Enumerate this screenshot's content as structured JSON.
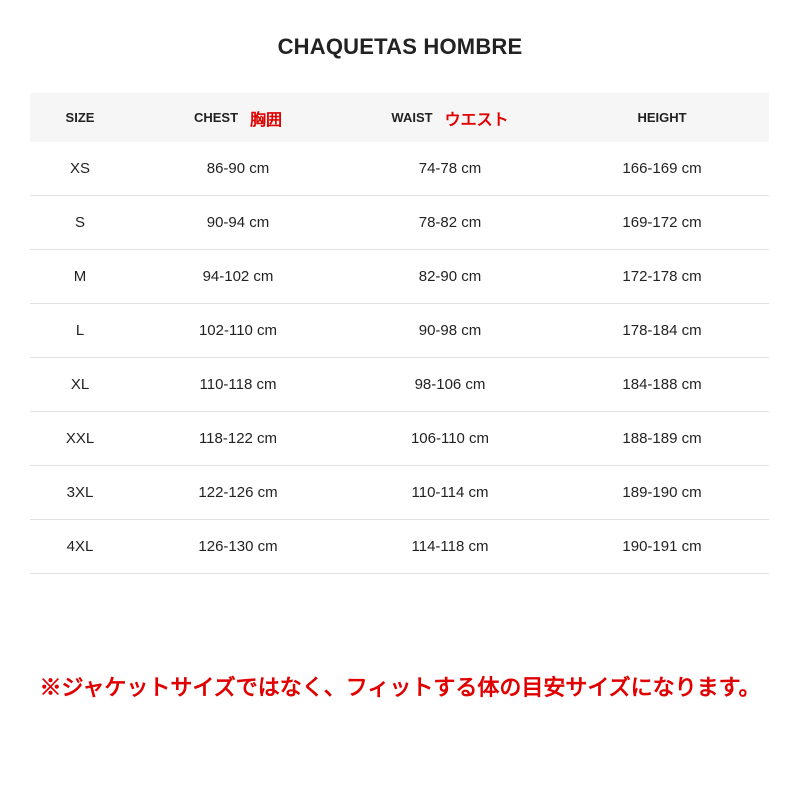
{
  "title": "CHAQUETAS HOMBRE",
  "headers": {
    "size": "SIZE",
    "chest": "CHEST",
    "chest_jp": "胸囲",
    "waist": "WAIST",
    "waist_jp": "ウエスト",
    "height": "HEIGHT"
  },
  "rows": [
    {
      "size": "XS",
      "chest": "86-90 cm",
      "waist": "74-78 cm",
      "height": "166-169 cm"
    },
    {
      "size": "S",
      "chest": "90-94 cm",
      "waist": "78-82 cm",
      "height": "169-172 cm"
    },
    {
      "size": "M",
      "chest": "94-102 cm",
      "waist": "82-90 cm",
      "height": "172-178 cm"
    },
    {
      "size": "L",
      "chest": "102-110 cm",
      "waist": "90-98 cm",
      "height": "178-184 cm"
    },
    {
      "size": "XL",
      "chest": "110-118 cm",
      "waist": "98-106 cm",
      "height": "184-188 cm"
    },
    {
      "size": "XXL",
      "chest": "118-122 cm",
      "waist": "106-110 cm",
      "height": "188-189 cm"
    },
    {
      "size": "3XL",
      "chest": "122-126 cm",
      "waist": "110-114 cm",
      "height": "189-190 cm"
    },
    {
      "size": "4XL",
      "chest": "126-130 cm",
      "waist": "114-118 cm",
      "height": "190-191 cm"
    }
  ],
  "note": "※ジャケットサイズではなく、フィットする体の目安サイズになります。",
  "colors": {
    "accent": "#e00000",
    "header_bg": "#f6f6f6"
  }
}
